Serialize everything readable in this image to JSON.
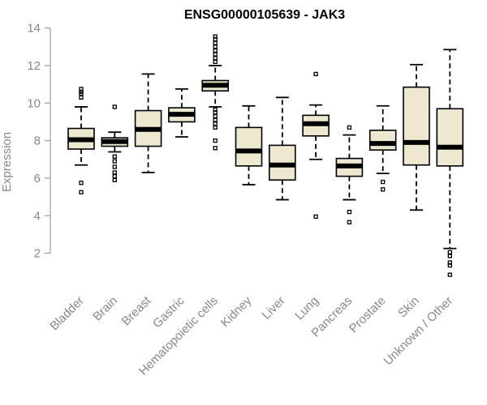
{
  "chart_data": {
    "type": "boxplot",
    "title": "ENSG00000105639 - JAK3",
    "xlabel": "",
    "ylabel": "Expression",
    "ylim": [
      0.6,
      14.2
    ],
    "yticks": [
      2,
      4,
      6,
      8,
      10,
      12,
      14
    ],
    "categories": [
      "Bladder",
      "Brain",
      "Breast",
      "Gastric",
      "Hematopoietic cells",
      "Kidney",
      "Liver",
      "Lung",
      "Pancreas",
      "Prostate",
      "Skin",
      "Unknown / Other"
    ],
    "boxes": [
      {
        "category": "Bladder",
        "whisker_low": 6.7,
        "q1": 7.55,
        "median": 8.05,
        "q3": 8.65,
        "whisker_high": 9.8,
        "outliers": [
          5.25,
          5.75,
          10.3,
          10.5,
          10.6,
          10.75
        ]
      },
      {
        "category": "Brain",
        "whisker_low": 7.4,
        "q1": 7.7,
        "median": 7.95,
        "q3": 8.15,
        "whisker_high": 8.45,
        "outliers": [
          5.9,
          6.1,
          6.3,
          6.6,
          6.9,
          7.15,
          9.8
        ]
      },
      {
        "category": "Breast",
        "whisker_low": 6.3,
        "q1": 7.7,
        "median": 8.6,
        "q3": 9.6,
        "whisker_high": 11.55,
        "outliers": []
      },
      {
        "category": "Gastric",
        "whisker_low": 8.2,
        "q1": 9.0,
        "median": 9.4,
        "q3": 9.75,
        "whisker_high": 10.75,
        "outliers": []
      },
      {
        "category": "Hematopoietic cells",
        "whisker_low": 9.8,
        "q1": 10.65,
        "median": 10.95,
        "q3": 11.2,
        "whisker_high": 12.0,
        "outliers": [
          7.6,
          8.0,
          8.7,
          8.9,
          9.1,
          9.3,
          9.5,
          9.65,
          12.2,
          12.4,
          12.6,
          12.8,
          13.0,
          13.2,
          13.4,
          13.55
        ]
      },
      {
        "category": "Kidney",
        "whisker_low": 5.65,
        "q1": 6.65,
        "median": 7.45,
        "q3": 8.7,
        "whisker_high": 9.85,
        "outliers": []
      },
      {
        "category": "Liver",
        "whisker_low": 4.85,
        "q1": 5.9,
        "median": 6.7,
        "q3": 7.75,
        "whisker_high": 10.3,
        "outliers": []
      },
      {
        "category": "Lung",
        "whisker_low": 7.0,
        "q1": 8.25,
        "median": 8.9,
        "q3": 9.35,
        "whisker_high": 9.9,
        "outliers": [
          3.95,
          11.55
        ]
      },
      {
        "category": "Pancreas",
        "whisker_low": 4.85,
        "q1": 6.1,
        "median": 6.65,
        "q3": 7.05,
        "whisker_high": 8.3,
        "outliers": [
          3.65,
          4.2,
          8.7
        ]
      },
      {
        "category": "Prostate",
        "whisker_low": 6.25,
        "q1": 7.5,
        "median": 7.85,
        "q3": 8.55,
        "whisker_high": 9.85,
        "outliers": [
          5.4,
          5.8
        ]
      },
      {
        "category": "Skin",
        "whisker_low": 4.3,
        "q1": 6.7,
        "median": 7.9,
        "q3": 10.85,
        "whisker_high": 12.05,
        "outliers": []
      },
      {
        "category": "Unknown / Other",
        "whisker_low": 2.25,
        "q1": 6.65,
        "median": 7.65,
        "q3": 9.7,
        "whisker_high": 12.85,
        "outliers": [
          0.85,
          1.35,
          1.5,
          1.85,
          2.05
        ]
      }
    ]
  }
}
